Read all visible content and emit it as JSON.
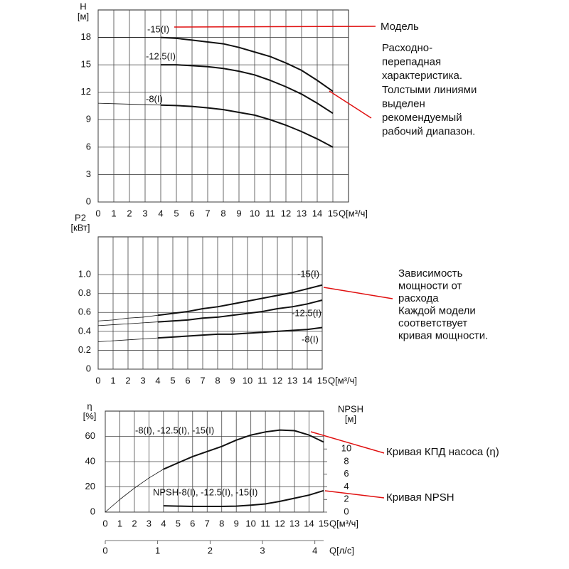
{
  "chart_data": [
    {
      "type": "line",
      "ylabel": [
        "H",
        "[м]"
      ],
      "xlabel": "Q[м³/ч]",
      "x": [
        0,
        1,
        2,
        3,
        4,
        5,
        6,
        7,
        8,
        9,
        10,
        11,
        12,
        13,
        14,
        15
      ],
      "xlim": [
        0,
        16
      ],
      "xticks": [
        0,
        1,
        2,
        3,
        4,
        5,
        6,
        7,
        8,
        9,
        10,
        11,
        12,
        13,
        14,
        15
      ],
      "ylim": [
        0,
        21
      ],
      "yticks": [
        0,
        3,
        6,
        9,
        12,
        15,
        18
      ],
      "grid": true,
      "series": [
        {
          "name": "-15(I)",
          "style": "thick",
          "color": "#111",
          "values": [
            null,
            null,
            null,
            null,
            18,
            17.9,
            17.7,
            17.5,
            17.3,
            16.9,
            16.4,
            15.9,
            15.2,
            14.4,
            13.3,
            12.1
          ]
        },
        {
          "style": "thin",
          "color": "#111",
          "values": [
            18,
            18,
            18,
            18,
            18,
            null,
            null,
            null,
            null,
            null,
            null,
            null,
            null,
            null,
            null,
            null
          ]
        },
        {
          "name": "-12.5(I)",
          "style": "thick",
          "color": "#111",
          "values": [
            null,
            null,
            null,
            null,
            15,
            15,
            14.9,
            14.8,
            14.6,
            14.3,
            13.9,
            13.3,
            12.6,
            11.8,
            10.8,
            9.7
          ]
        },
        {
          "name": "-8(I)",
          "style": "thick",
          "color": "#111",
          "values": [
            null,
            null,
            null,
            null,
            10.6,
            10.55,
            10.45,
            10.3,
            10.1,
            9.8,
            9.5,
            9.0,
            8.4,
            7.7,
            6.9,
            6.0
          ]
        },
        {
          "style": "thin",
          "color": "#111",
          "values": [
            10.8,
            10.75,
            10.7,
            10.65,
            10.6,
            null,
            null,
            null,
            null,
            null,
            null,
            null,
            null,
            null,
            null,
            null
          ]
        }
      ],
      "annotations": [
        {
          "lines": [
            "Модель"
          ]
        },
        {
          "lines": [
            "Расходно-",
            "перепадная",
            "характеристика.",
            "Толстыми линиями",
            "выделен",
            "рекомендуемый",
            "рабочий диапазон."
          ]
        }
      ]
    },
    {
      "type": "line",
      "ylabel": [
        "P2",
        "[кВт]"
      ],
      "xlabel": "Q[м³/ч]",
      "x": [
        0,
        1,
        2,
        3,
        4,
        5,
        6,
        7,
        8,
        9,
        10,
        11,
        12,
        13,
        14,
        15
      ],
      "xlim": [
        0,
        15
      ],
      "xticks": [
        0,
        1,
        2,
        3,
        4,
        5,
        6,
        7,
        8,
        9,
        10,
        11,
        12,
        13,
        14,
        15
      ],
      "ylim": [
        0,
        1.4
      ],
      "yticks": [
        0,
        0.2,
        0.4,
        0.6,
        0.8,
        {
          "value": 1,
          "label": "1.0"
        }
      ],
      "grid": true,
      "series": [
        {
          "name": "-15(I)",
          "style": "thick",
          "color": "#111",
          "values": [
            null,
            null,
            null,
            null,
            0.57,
            0.59,
            0.61,
            0.64,
            0.66,
            0.69,
            0.72,
            0.75,
            0.78,
            0.81,
            0.85,
            0.89
          ]
        },
        {
          "style": "thin",
          "color": "#111",
          "values": [
            0.51,
            0.52,
            0.54,
            0.55,
            0.57,
            null,
            null,
            null,
            null,
            null,
            null,
            null,
            null,
            null,
            null,
            null
          ]
        },
        {
          "name": "-12.5(I)",
          "style": "thick",
          "color": "#111",
          "values": [
            null,
            null,
            null,
            null,
            0.5,
            0.51,
            0.52,
            0.54,
            0.55,
            0.57,
            0.59,
            0.61,
            0.64,
            0.66,
            0.69,
            0.73
          ]
        },
        {
          "style": "thin",
          "color": "#111",
          "values": [
            0.46,
            0.47,
            0.48,
            0.49,
            0.5,
            null,
            null,
            null,
            null,
            null,
            null,
            null,
            null,
            null,
            null,
            null
          ]
        },
        {
          "name": "-8(I)",
          "style": "thick",
          "color": "#111",
          "values": [
            null,
            null,
            null,
            null,
            0.33,
            0.34,
            0.35,
            0.36,
            0.37,
            0.37,
            0.38,
            0.39,
            0.4,
            0.41,
            0.42,
            0.44
          ]
        },
        {
          "style": "thin",
          "color": "#111",
          "values": [
            0.29,
            0.3,
            0.31,
            0.32,
            0.33,
            null,
            null,
            null,
            null,
            null,
            null,
            null,
            null,
            null,
            null,
            null
          ]
        }
      ],
      "annotations": [
        {
          "lines": [
            "Зависимость",
            "мощности от",
            "расхода",
            "Каждой модели",
            "соответствует",
            "кривая мощности."
          ]
        }
      ]
    },
    {
      "type": "line",
      "ylabel": [
        "η",
        "[%]"
      ],
      "y2label": [
        "NPSH",
        "[м]"
      ],
      "xlabel": "Q[м³/ч]",
      "x2label": "Q[л/с]",
      "x": [
        0,
        1,
        2,
        3,
        4,
        5,
        6,
        7,
        8,
        9,
        10,
        11,
        12,
        13,
        14,
        15
      ],
      "xlim": [
        0,
        15
      ],
      "xticks": [
        0,
        1,
        2,
        3,
        4,
        5,
        6,
        7,
        8,
        9,
        10,
        11,
        12,
        13,
        14,
        15
      ],
      "x2lim": [
        0,
        4.1667
      ],
      "x2ticks": [
        0,
        1,
        2,
        3,
        4
      ],
      "ylim": [
        0,
        80
      ],
      "yticks": [
        0,
        20,
        40,
        60
      ],
      "y2lim": [
        0,
        16
      ],
      "y2ticks": [
        0,
        2,
        4,
        6,
        8,
        10
      ],
      "grid": true,
      "series": [
        {
          "name": "-8(I), -12.5(I), -15(I)",
          "style": "thick",
          "color": "#111",
          "values": [
            null,
            null,
            null,
            null,
            34,
            39,
            44,
            48,
            52,
            57,
            61,
            63.5,
            65,
            64.5,
            61,
            55.5
          ]
        },
        {
          "style": "thin",
          "color": "#111",
          "values": [
            0,
            10,
            19,
            27,
            34,
            null,
            null,
            null,
            null,
            null,
            null,
            null,
            null,
            null,
            null,
            null
          ]
        },
        {
          "name": "NPSH-8(I), -12.5(I), -15(I)",
          "style": "thick",
          "color": "#111",
          "axis": "y2",
          "values": [
            null,
            null,
            null,
            null,
            1.0,
            0.95,
            0.9,
            0.9,
            0.9,
            0.95,
            1.1,
            1.3,
            1.7,
            2.2,
            2.7,
            3.4
          ]
        }
      ],
      "annotations": [
        {
          "lines": [
            "Кривая КПД насоса (η)"
          ]
        },
        {
          "lines": [
            "Кривая NPSH"
          ]
        }
      ]
    }
  ]
}
